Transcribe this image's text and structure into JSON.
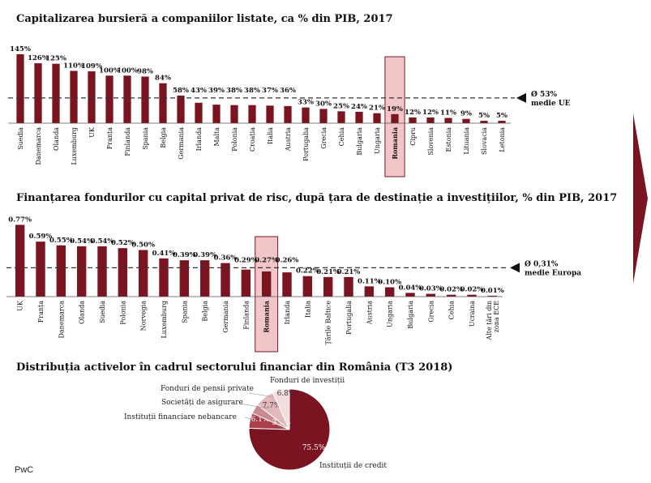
{
  "footer": "PwC",
  "colors": {
    "bar": "#7b1421",
    "highlight_bg": "#f2c6c9",
    "pie": [
      "#7b1421",
      "#a93f4a",
      "#c98a91",
      "#e3b8bc",
      "#f3dcde"
    ]
  },
  "chart_data": [
    {
      "type": "bar",
      "title": "Capitalizarea bursieră a companiilor listate, ca % din PIB, 2017",
      "categories": [
        "Suedia",
        "Danemarca",
        "Olanda",
        "Luxemburg",
        "UK",
        "Franța",
        "Finlanda",
        "Spania",
        "Belgia",
        "Germania",
        "Irlanda",
        "Malta",
        "Polonia",
        "Croația",
        "Italia",
        "Austria",
        "Portugalia",
        "Grecia",
        "Cehia",
        "Bulgaria",
        "Ungaria",
        "Romania",
        "Cipru",
        "Slovenia",
        "Estonia",
        "Lituania",
        "Slovacia",
        "Letonia"
      ],
      "values": [
        145,
        126,
        125,
        110,
        109,
        100,
        100,
        98,
        84,
        58,
        43,
        39,
        38,
        38,
        37,
        36,
        33,
        30,
        25,
        24,
        21,
        19,
        12,
        12,
        11,
        9,
        5,
        5
      ],
      "value_labels": [
        "145%",
        "126%",
        "125%",
        "110%",
        "109%",
        "100%",
        "100%",
        "98%",
        "84%",
        "58%",
        "43%",
        "39%",
        "38%",
        "38%",
        "37%",
        "36%",
        "33%",
        "30%",
        "25%",
        "24%",
        "21%",
        "19%",
        "12%",
        "12%",
        "11%",
        "9%",
        "5%",
        "5%"
      ],
      "highlight": "Romania",
      "reference": {
        "value": 53,
        "label": "Ø 53%",
        "sublabel": "medie UE"
      },
      "ylim": [
        0,
        150
      ]
    },
    {
      "type": "bar",
      "title": "Finanțarea fondurilor cu capital privat de risc, după țara de destinație a investițiilor, % din PIB, 2017",
      "categories": [
        "UK",
        "Franța",
        "Danemarca",
        "Olanda",
        "Suedia",
        "Polonia",
        "Norvegia",
        "Luxemburg",
        "Spania",
        "Belgia",
        "Germania",
        "Finlanda",
        "Romania",
        "Irlanda",
        "Italia",
        "Țările Baltice",
        "Portugalia",
        "Austria",
        "Ungaria",
        "Bulgaria",
        "Grecia",
        "Cehia",
        "Ucraina",
        "Alte țări din zona ECE"
      ],
      "values": [
        0.77,
        0.59,
        0.55,
        0.54,
        0.54,
        0.52,
        0.5,
        0.41,
        0.39,
        0.39,
        0.36,
        0.29,
        0.27,
        0.26,
        0.22,
        0.21,
        0.21,
        0.11,
        0.1,
        0.04,
        0.03,
        0.02,
        0.02,
        0.01
      ],
      "value_labels": [
        "0.77%",
        "0.59%",
        "0.55%",
        "0.54%",
        "0.54%",
        "0.52%",
        "0.50%",
        "0.41%",
        "0.39%",
        "0.39%",
        "0.36%",
        "0.29%",
        "0.27%",
        "0.26%",
        "0.22%",
        "0.21%",
        "0.21%",
        "0.11%",
        "0.10%",
        "0.04%",
        "0.03%",
        "0.02%",
        "0.02%",
        "0.01%"
      ],
      "highlight": "Romania",
      "reference": {
        "value": 0.31,
        "label": "Ø 0,31%",
        "sublabel": "medie Europa"
      },
      "ylim": [
        0,
        0.8
      ]
    },
    {
      "type": "pie",
      "title": "Distribuția activelor în cadrul sectorului financiar din România (T3 2018)",
      "slices": [
        {
          "name": "Instituții de credit",
          "value": 75.5,
          "label": "75.5%"
        },
        {
          "name": "Instituții financiare nebancare",
          "value": 6.1,
          "label": "6.1%"
        },
        {
          "name": "",
          "value": 3.9,
          "label": "3.9%"
        },
        {
          "name": "Societăți de asigurare",
          "value": 7.7,
          "label": "7.7%"
        },
        {
          "name": "Fonduri de investiții",
          "value": 6.8,
          "label": "6.8%"
        }
      ],
      "extra_labels": [
        "Fonduri de pensii private"
      ]
    }
  ]
}
